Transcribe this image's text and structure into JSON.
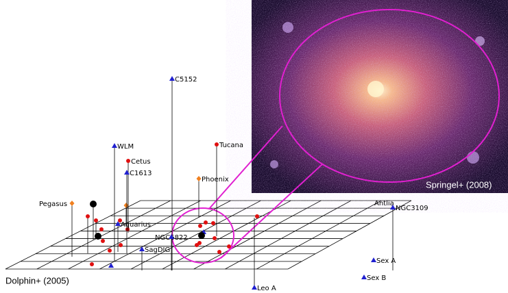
{
  "labels": [
    "C5152",
    "WLM",
    "Cetus",
    "C1613",
    "Pegasus",
    "Aquarius",
    "NGC6822",
    "SagDIG",
    "Tucana",
    "Phoenix",
    "Antlia",
    "NGC3109",
    "Sex A",
    "Sex B",
    "Leo A"
  ],
  "captions": {
    "left": "Dolphin+ (2005)",
    "inset": "Springel+ (2008)"
  }
}
